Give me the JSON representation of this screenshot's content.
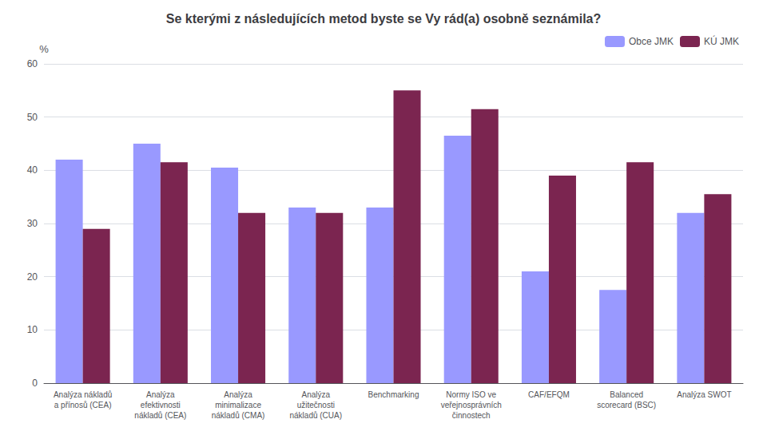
{
  "chart_data": {
    "type": "bar",
    "title": "Se kterými z následujících metod byste se Vy rád(a) osobně seznámila?",
    "ylabel": "%",
    "categories": [
      "Analýza nákladů\na přínosů (CEA)",
      "Analýza\nefektivnosti\nnákladů (CEA)",
      "Analýza\nminimalizace\nnákladů (CMA)",
      "Analýza\nužitečnosti\nnákladů (CUA)",
      "Benchmarking",
      "Normy ISO ve\nveřejnosprávních\nčinnostech",
      "CAF/EFQM",
      "Balanced\nscorecard (BSC)",
      "Analýza SWOT"
    ],
    "series": [
      {
        "name": "Obce JMK",
        "color": "#9999FF",
        "values": [
          42,
          45,
          40.5,
          33,
          33,
          46.5,
          21,
          17.5,
          32
        ]
      },
      {
        "name": "KÚ JMK",
        "color": "#7B2550",
        "values": [
          29,
          41.5,
          32,
          32,
          55,
          51.5,
          39,
          41.5,
          35.5
        ]
      }
    ],
    "ylim": [
      0,
      60
    ],
    "yticks": [
      0,
      10,
      20,
      30,
      40,
      50,
      60
    ],
    "grid": true,
    "legend": "upper right"
  }
}
